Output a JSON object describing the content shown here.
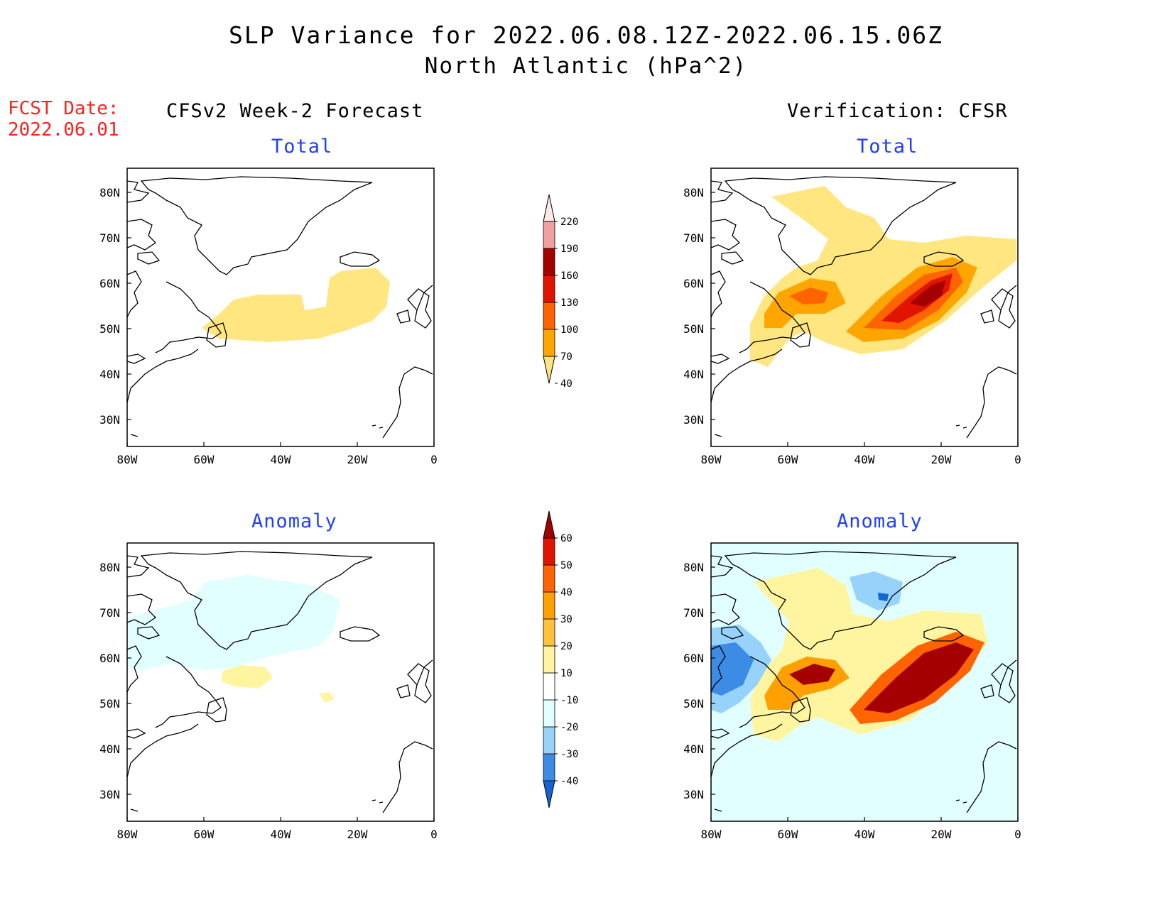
{
  "title": {
    "line1": "SLP Variance for 2022.06.08.12Z-2022.06.15.06Z",
    "line2": "North Atlantic (hPa^2)"
  },
  "forecast_date": {
    "label": "FCST Date:",
    "value": "2022.06.01"
  },
  "columns": {
    "left": "CFSv2 Week-2 Forecast",
    "right": "Verification: CFSR"
  },
  "panels": {
    "forecast_total": {
      "title": "Total"
    },
    "forecast_anomaly": {
      "title": "Anomaly"
    },
    "verification_total": {
      "title": "Total"
    },
    "verification_anomaly": {
      "title": "Anomaly"
    }
  },
  "axes": {
    "x_ticks": [
      "80W",
      "60W",
      "40W",
      "20W",
      "0"
    ],
    "y_ticks": [
      "80N",
      "70N",
      "60N",
      "50N",
      "40N",
      "30N"
    ]
  },
  "colors": {
    "total_scale": [
      "#ffe680",
      "#ffa500",
      "#ff6400",
      "#e11400",
      "#a50000",
      "#f0a0a0",
      "#ffe8e8"
    ],
    "anomaly_scale": [
      "#1464d2",
      "#3c8ce6",
      "#96d2fa",
      "#e1ffff",
      "#ffffff",
      "#fff5a0",
      "#ffc03c",
      "#ffa000",
      "#ff6400",
      "#e11400",
      "#a50000"
    ],
    "title_blue": "#1f3fff",
    "fcst_red": "#ff2020"
  },
  "colorbars": {
    "total": {
      "labels": [
        "220",
        "190",
        "160",
        "130",
        "100",
        "70",
        "40"
      ]
    },
    "anomaly": {
      "labels": [
        "60",
        "50",
        "40",
        "30",
        "20",
        "10",
        "-10",
        "-20",
        "-30",
        "-40"
      ]
    }
  }
}
